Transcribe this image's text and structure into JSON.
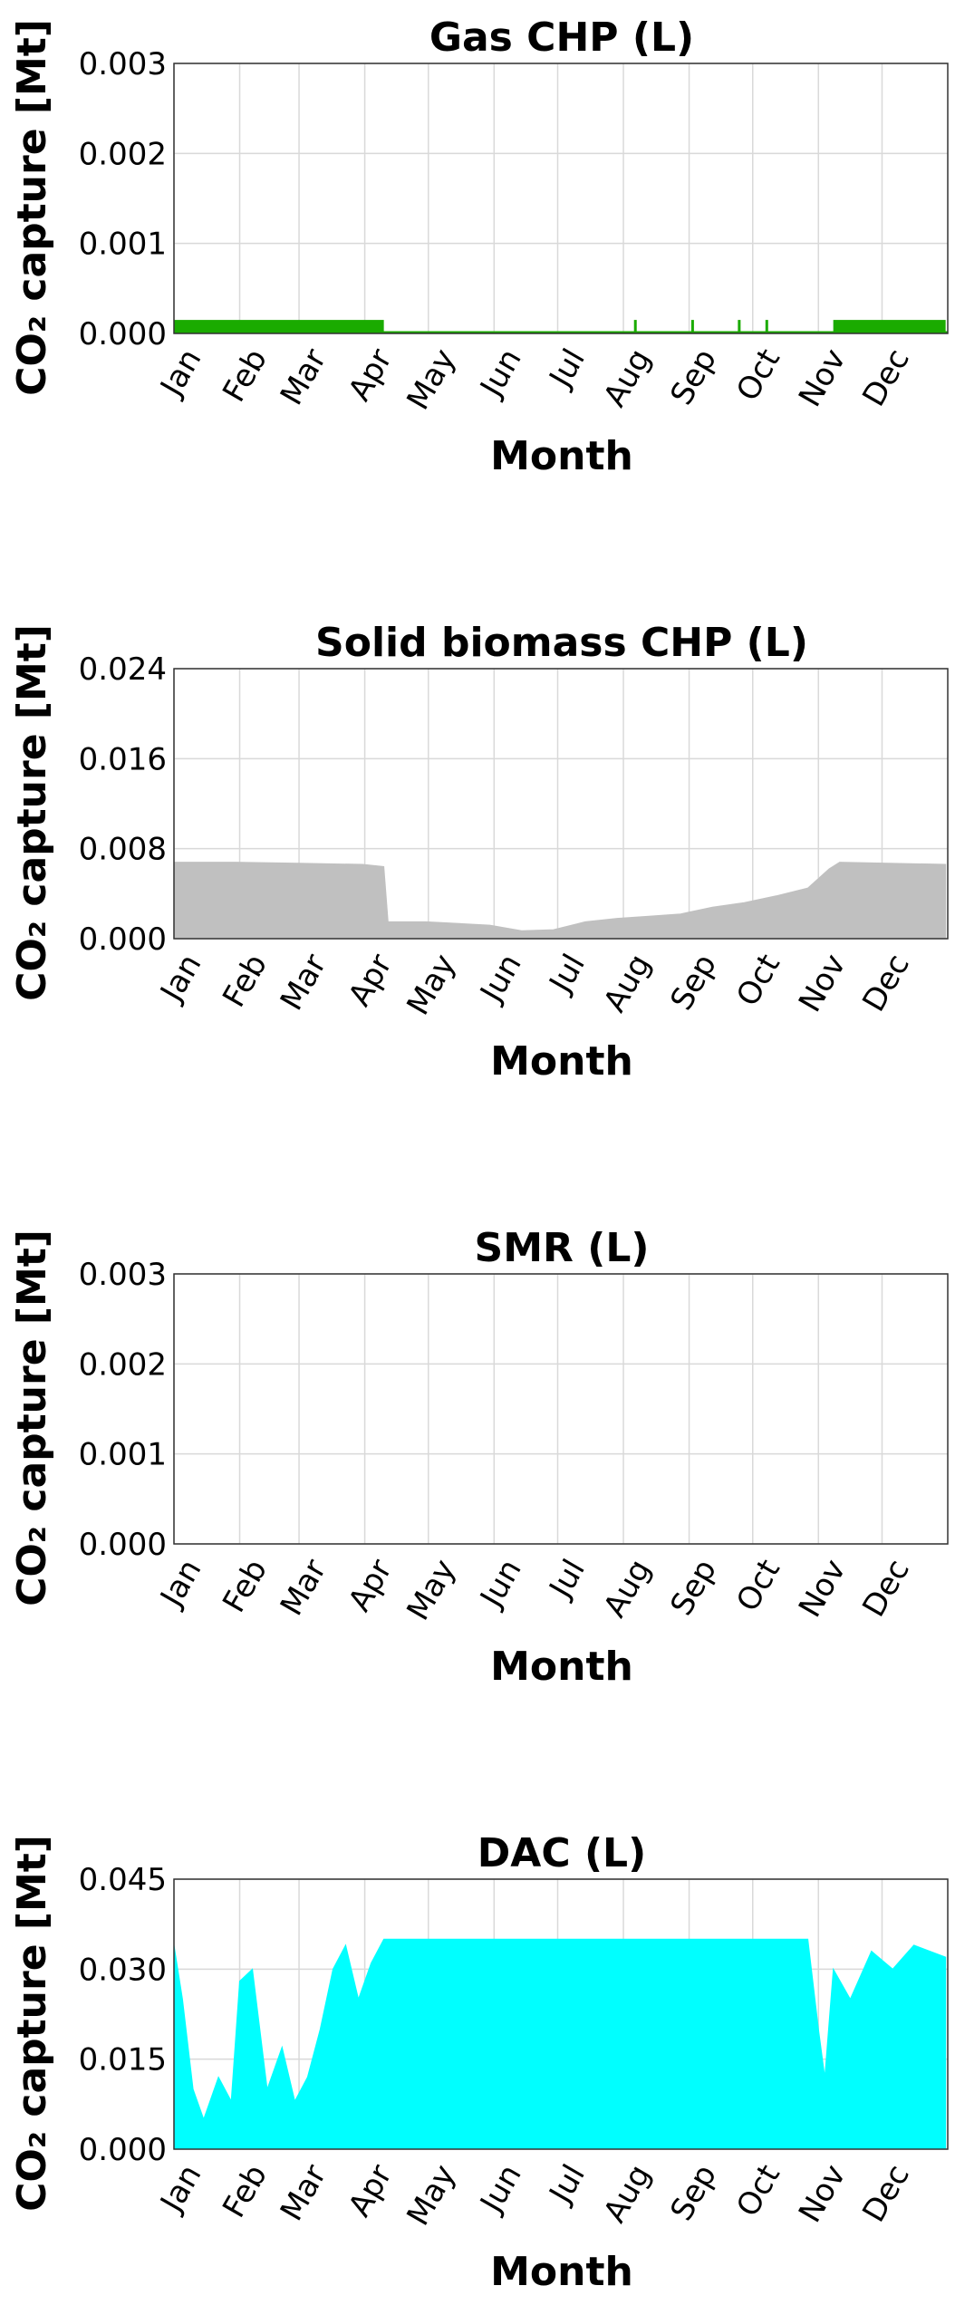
{
  "chart_data": [
    {
      "type": "area",
      "title": "Gas CHP (L)",
      "xlabel": "Month",
      "ylabel": "CO₂ capture [Mt]",
      "ylim": [
        0,
        0.003
      ],
      "yticks": [
        "0.000",
        "0.001",
        "0.002",
        "0.003"
      ],
      "color": "#1aab00",
      "categories": [
        "Jan",
        "Feb",
        "Mar",
        "Apr",
        "May",
        "Jun",
        "Jul",
        "Aug",
        "Sep",
        "Oct",
        "Nov",
        "Dec"
      ],
      "grid": true,
      "segments": [
        {
          "start_day": 1,
          "end_day": 100,
          "value": 0.00015
        },
        {
          "start_day": 218,
          "end_day": 219,
          "value": 0.00015
        },
        {
          "start_day": 245,
          "end_day": 246,
          "value": 0.00015
        },
        {
          "start_day": 267,
          "end_day": 268,
          "value": 0.00015
        },
        {
          "start_day": 280,
          "end_day": 281,
          "value": 0.00015
        },
        {
          "start_day": 312,
          "end_day": 365,
          "value": 0.00015
        }
      ]
    },
    {
      "type": "area",
      "title": "Solid biomass CHP (L)",
      "xlabel": "Month",
      "ylabel": "CO₂ capture [Mt]",
      "ylim": [
        0,
        0.024
      ],
      "yticks": [
        "0.000",
        "0.008",
        "0.016",
        "0.024"
      ],
      "color": "#c0c0c0",
      "categories": [
        "Jan",
        "Feb",
        "Mar",
        "Apr",
        "May",
        "Jun",
        "Jul",
        "Aug",
        "Sep",
        "Oct",
        "Nov",
        "Dec"
      ],
      "grid": true,
      "profile": [
        {
          "day": 1,
          "value": 0.0068
        },
        {
          "day": 30,
          "value": 0.0068
        },
        {
          "day": 60,
          "value": 0.0067
        },
        {
          "day": 90,
          "value": 0.0066
        },
        {
          "day": 100,
          "value": 0.0064
        },
        {
          "day": 102,
          "value": 0.0015
        },
        {
          "day": 120,
          "value": 0.0015
        },
        {
          "day": 150,
          "value": 0.0012
        },
        {
          "day": 165,
          "value": 0.0007
        },
        {
          "day": 180,
          "value": 0.0008
        },
        {
          "day": 195,
          "value": 0.0015
        },
        {
          "day": 210,
          "value": 0.0018
        },
        {
          "day": 225,
          "value": 0.002
        },
        {
          "day": 240,
          "value": 0.0022
        },
        {
          "day": 255,
          "value": 0.0028
        },
        {
          "day": 270,
          "value": 0.0032
        },
        {
          "day": 285,
          "value": 0.0038
        },
        {
          "day": 300,
          "value": 0.0045
        },
        {
          "day": 310,
          "value": 0.0062
        },
        {
          "day": 315,
          "value": 0.0068
        },
        {
          "day": 365,
          "value": 0.0066
        }
      ]
    },
    {
      "type": "area",
      "title": "SMR (L)",
      "xlabel": "Month",
      "ylabel": "CO₂ capture [Mt]",
      "ylim": [
        0,
        0.003
      ],
      "yticks": [
        "0.000",
        "0.001",
        "0.002",
        "0.003"
      ],
      "color": "#7f7f7f",
      "categories": [
        "Jan",
        "Feb",
        "Mar",
        "Apr",
        "May",
        "Jun",
        "Jul",
        "Aug",
        "Sep",
        "Oct",
        "Nov",
        "Dec"
      ],
      "grid": true,
      "profile": [
        {
          "day": 1,
          "value": 0
        },
        {
          "day": 365,
          "value": 0
        }
      ]
    },
    {
      "type": "area",
      "title": "DAC (L)",
      "xlabel": "Month",
      "ylabel": "CO₂ capture [Mt]",
      "ylim": [
        0,
        0.045
      ],
      "yticks": [
        "0.000",
        "0.015",
        "0.030",
        "0.045"
      ],
      "color": "#00ffff",
      "categories": [
        "Jan",
        "Feb",
        "Mar",
        "Apr",
        "May",
        "Jun",
        "Jul",
        "Aug",
        "Sep",
        "Oct",
        "Nov",
        "Dec"
      ],
      "grid": true,
      "profile": [
        {
          "day": 1,
          "value": 0.034
        },
        {
          "day": 5,
          "value": 0.025
        },
        {
          "day": 10,
          "value": 0.01
        },
        {
          "day": 15,
          "value": 0.005
        },
        {
          "day": 22,
          "value": 0.012
        },
        {
          "day": 28,
          "value": 0.008
        },
        {
          "day": 32,
          "value": 0.028
        },
        {
          "day": 38,
          "value": 0.03
        },
        {
          "day": 45,
          "value": 0.01
        },
        {
          "day": 52,
          "value": 0.017
        },
        {
          "day": 58,
          "value": 0.008
        },
        {
          "day": 64,
          "value": 0.012
        },
        {
          "day": 70,
          "value": 0.02
        },
        {
          "day": 76,
          "value": 0.03
        },
        {
          "day": 82,
          "value": 0.034
        },
        {
          "day": 88,
          "value": 0.025
        },
        {
          "day": 94,
          "value": 0.031
        },
        {
          "day": 100,
          "value": 0.035
        },
        {
          "day": 160,
          "value": 0.035
        },
        {
          "day": 220,
          "value": 0.035
        },
        {
          "day": 280,
          "value": 0.035
        },
        {
          "day": 300,
          "value": 0.035
        },
        {
          "day": 305,
          "value": 0.02
        },
        {
          "day": 308,
          "value": 0.012
        },
        {
          "day": 312,
          "value": 0.03
        },
        {
          "day": 320,
          "value": 0.025
        },
        {
          "day": 330,
          "value": 0.033
        },
        {
          "day": 340,
          "value": 0.03
        },
        {
          "day": 350,
          "value": 0.034
        },
        {
          "day": 365,
          "value": 0.032
        }
      ]
    }
  ]
}
